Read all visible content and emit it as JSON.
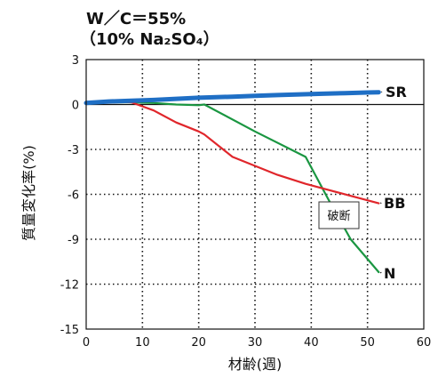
{
  "chart_data": {
    "type": "line",
    "title": [
      "W／C＝55%",
      "（10% Na₂SO₄）"
    ],
    "xlabel": "材齢(週)",
    "ylabel": "質量変化率(%)",
    "xlim": [
      0,
      60
    ],
    "ylim": [
      -15,
      3
    ],
    "xticks": [
      0,
      10,
      20,
      30,
      40,
      50,
      60
    ],
    "yticks": [
      3,
      0,
      -3,
      -6,
      -9,
      -12,
      -15
    ],
    "grid": "dotted",
    "annotation": "破断",
    "series": [
      {
        "name": "SR",
        "color": "#1f6fc5",
        "x": [
          0,
          4,
          8,
          12,
          16,
          20,
          26,
          30,
          34,
          38,
          42,
          46,
          50,
          52
        ],
        "y": [
          0.1,
          0.2,
          0.25,
          0.3,
          0.38,
          0.45,
          0.52,
          0.58,
          0.63,
          0.68,
          0.72,
          0.76,
          0.8,
          0.82
        ]
      },
      {
        "name": "BB",
        "color": "#e0262b",
        "x": [
          0,
          4,
          8,
          12,
          16,
          20,
          21,
          26,
          30,
          34,
          39,
          43,
          47,
          52
        ],
        "y": [
          0.1,
          0.2,
          0.15,
          -0.4,
          -1.2,
          -1.8,
          -2.0,
          -3.5,
          -4.1,
          -4.7,
          -5.3,
          -5.7,
          -6.1,
          -6.6
        ]
      },
      {
        "name": "N",
        "color": "#1a9641",
        "x": [
          0,
          4,
          8,
          12,
          16,
          20,
          21,
          30,
          39,
          43,
          47,
          52
        ],
        "y": [
          0.1,
          0.15,
          0.15,
          0.1,
          0.0,
          -0.05,
          0.0,
          -1.8,
          -3.5,
          -6.3,
          -9.0,
          -11.2
        ]
      }
    ]
  }
}
